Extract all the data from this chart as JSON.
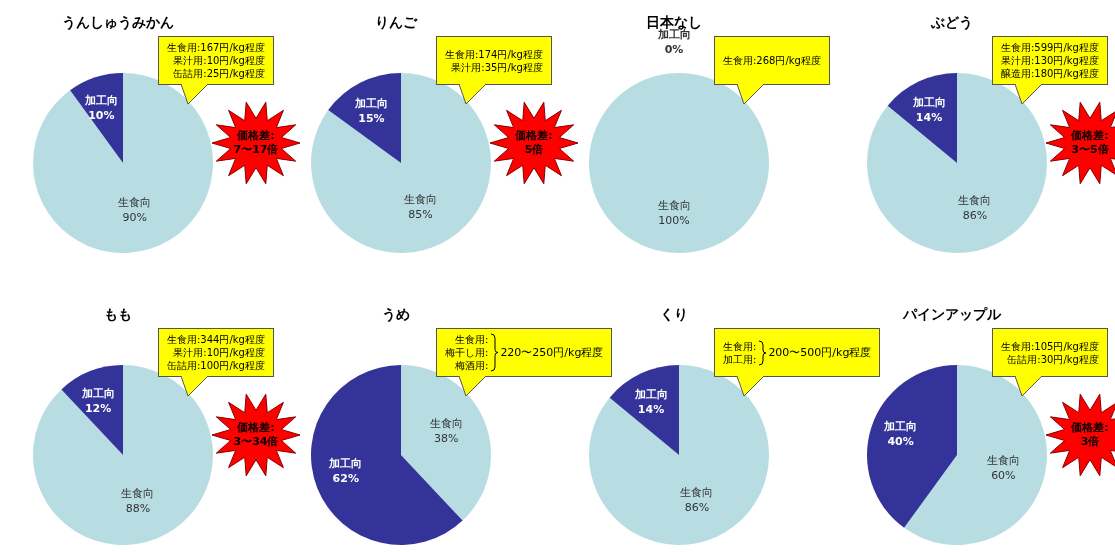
{
  "chart_data": [
    {
      "type": "pie",
      "title": "うんしゅうみかん",
      "categories": [
        "生食向",
        "加工向"
      ],
      "values": [
        90,
        10
      ],
      "value_labels": [
        "90%",
        "10%"
      ],
      "colors": [
        "#b7dde3",
        "#333399"
      ],
      "annotations": [
        "生食用:167円/kg程度",
        "果汁用:10円/kg程度",
        "缶詰用:25円/kg程度",
        "価格差:\n7〜17倍"
      ]
    },
    {
      "type": "pie",
      "title": "りんご",
      "categories": [
        "生食向",
        "加工向"
      ],
      "values": [
        85,
        15
      ],
      "value_labels": [
        "85%",
        "15%"
      ],
      "colors": [
        "#b7dde3",
        "#333399"
      ],
      "annotations": [
        "生食用:174円/kg程度",
        "果汁用:35円/kg程度",
        "価格差:\n5倍"
      ]
    },
    {
      "type": "pie",
      "title": "日本なし",
      "categories": [
        "生食向",
        "加工向"
      ],
      "values": [
        100,
        0
      ],
      "value_labels": [
        "100%",
        "0%"
      ],
      "colors": [
        "#b7dde3",
        "#333399"
      ],
      "annotations": [
        "生食用:268円/kg程度"
      ]
    },
    {
      "type": "pie",
      "title": "ぶどう",
      "categories": [
        "生食向",
        "加工向"
      ],
      "values": [
        86,
        14
      ],
      "value_labels": [
        "86%",
        "14%"
      ],
      "colors": [
        "#b7dde3",
        "#333399"
      ],
      "annotations": [
        "生食用:599円/kg程度",
        "果汁用:130円/kg程度",
        "醸造用:180円/kg程度",
        "価格差:\n3〜5倍"
      ]
    },
    {
      "type": "pie",
      "title": "もも",
      "categories": [
        "生食向",
        "加工向"
      ],
      "values": [
        88,
        12
      ],
      "value_labels": [
        "88%",
        "12%"
      ],
      "colors": [
        "#b7dde3",
        "#333399"
      ],
      "annotations": [
        "生食用:344円/kg程度",
        "果汁用:10円/kg程度",
        "缶詰用:100円/kg程度",
        "価格差:\n3〜34倍"
      ]
    },
    {
      "type": "pie",
      "title": "うめ",
      "categories": [
        "生食向",
        "加工向"
      ],
      "values": [
        38,
        62
      ],
      "value_labels": [
        "38%",
        "62%"
      ],
      "colors": [
        "#b7dde3",
        "#333399"
      ],
      "annotations": [
        "生食用:\n梅干し用:\n梅酒用:",
        "220〜250円/kg程度"
      ]
    },
    {
      "type": "pie",
      "title": "くり",
      "categories": [
        "生食向",
        "加工向"
      ],
      "values": [
        86,
        14
      ],
      "value_labels": [
        "86%",
        "14%"
      ],
      "colors": [
        "#b7dde3",
        "#333399"
      ],
      "annotations": [
        "生食用:\n加工用:",
        "200〜500円/kg程度"
      ]
    },
    {
      "type": "pie",
      "title": "パインアップル",
      "categories": [
        "生食向",
        "加工向"
      ],
      "values": [
        60,
        40
      ],
      "value_labels": [
        "60%",
        "40%"
      ],
      "colors": [
        "#b7dde3",
        "#333399"
      ],
      "annotations": [
        "生食用:105円/kg程度",
        "缶詰用:30円/kg程度",
        "価格差:\n3倍"
      ]
    }
  ]
}
